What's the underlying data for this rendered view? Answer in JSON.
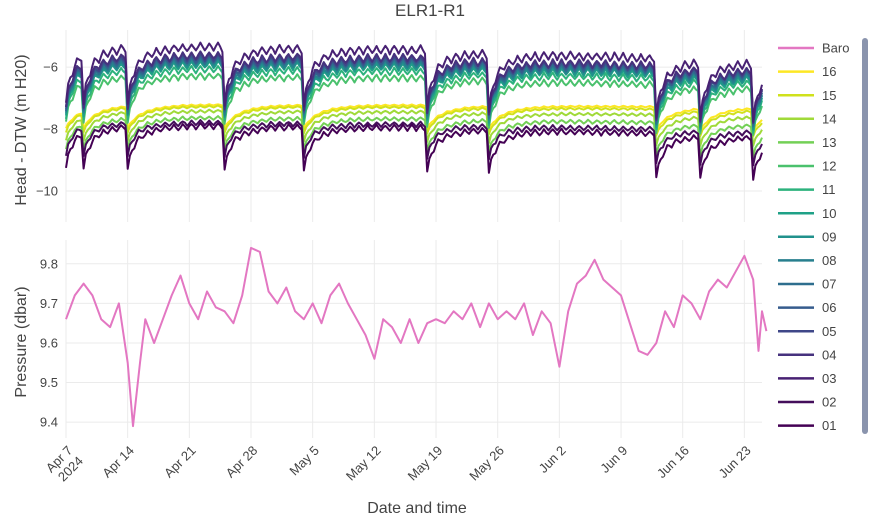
{
  "chart_data": {
    "type": "line",
    "title": "ELR1-R1",
    "xlabel": "Date and time",
    "x_tick_labels": [
      "Apr 7\n2024",
      "Apr 14",
      "Apr 21",
      "Apr 28",
      "May 5",
      "May 12",
      "May 19",
      "May 26",
      "Jun 2",
      "Jun 9",
      "Jun 16",
      "Jun 23"
    ],
    "x_tick_dates": [
      "2024-04-07",
      "2024-04-14",
      "2024-04-21",
      "2024-04-28",
      "2024-05-05",
      "2024-05-12",
      "2024-05-19",
      "2024-05-26",
      "2024-06-02",
      "2024-06-09",
      "2024-06-16",
      "2024-06-23"
    ],
    "xlim": [
      "2024-04-07",
      "2024-06-25"
    ],
    "grid": true,
    "legend_placement": "right",
    "panels": [
      {
        "ylabel": "Head - DTW (m H20)",
        "ylim": [
          -11,
          -4.8
        ],
        "y_ticks": [
          -10,
          -8,
          -6
        ],
        "y_tick_labels": [
          "−10",
          "−8",
          "−6"
        ]
      },
      {
        "ylabel": "Pressure (dbar)",
        "ylim": [
          9.36,
          9.86
        ],
        "y_ticks": [
          9.4,
          9.5,
          9.6,
          9.7,
          9.8
        ],
        "y_tick_labels": [
          "9.4",
          "9.5",
          "9.6",
          "9.7",
          "9.8"
        ]
      }
    ],
    "recharge_events": [
      "2024-04-07",
      "2024-04-09",
      "2024-04-14",
      "2024-04-25",
      "2024-05-04",
      "2024-05-18",
      "2024-05-25",
      "2024-06-13",
      "2024-06-18",
      "2024-06-24"
    ],
    "series": [
      {
        "name": "Baro",
        "color": "#e377c2",
        "panel": 2,
        "points": [
          [
            "2024-04-07",
            9.66
          ],
          [
            "2024-04-08",
            9.72
          ],
          [
            "2024-04-09",
            9.75
          ],
          [
            "2024-04-10",
            9.72
          ],
          [
            "2024-04-11",
            9.66
          ],
          [
            "2024-04-12",
            9.64
          ],
          [
            "2024-04-13",
            9.7
          ],
          [
            "2024-04-14",
            9.55
          ],
          [
            "2024-04-14.6",
            9.39
          ],
          [
            "2024-04-15.4",
            9.55
          ],
          [
            "2024-04-16",
            9.66
          ],
          [
            "2024-04-17",
            9.6
          ],
          [
            "2024-04-18",
            9.66
          ],
          [
            "2024-04-19",
            9.72
          ],
          [
            "2024-04-20",
            9.77
          ],
          [
            "2024-04-21",
            9.7
          ],
          [
            "2024-04-22",
            9.66
          ],
          [
            "2024-04-23",
            9.73
          ],
          [
            "2024-04-24",
            9.69
          ],
          [
            "2024-04-25",
            9.68
          ],
          [
            "2024-04-26",
            9.65
          ],
          [
            "2024-04-27",
            9.72
          ],
          [
            "2024-04-28",
            9.84
          ],
          [
            "2024-04-29",
            9.83
          ],
          [
            "2024-04-30",
            9.73
          ],
          [
            "2024-05-01",
            9.7
          ],
          [
            "2024-05-02",
            9.74
          ],
          [
            "2024-05-03",
            9.68
          ],
          [
            "2024-05-04",
            9.66
          ],
          [
            "2024-05-05",
            9.7
          ],
          [
            "2024-05-06",
            9.65
          ],
          [
            "2024-05-07",
            9.72
          ],
          [
            "2024-05-08",
            9.75
          ],
          [
            "2024-05-09",
            9.7
          ],
          [
            "2024-05-10",
            9.66
          ],
          [
            "2024-05-11",
            9.62
          ],
          [
            "2024-05-12",
            9.56
          ],
          [
            "2024-05-13",
            9.66
          ],
          [
            "2024-05-14",
            9.64
          ],
          [
            "2024-05-15",
            9.6
          ],
          [
            "2024-05-16",
            9.66
          ],
          [
            "2024-05-17",
            9.6
          ],
          [
            "2024-05-18",
            9.65
          ],
          [
            "2024-05-19",
            9.66
          ],
          [
            "2024-05-20",
            9.65
          ],
          [
            "2024-05-21",
            9.68
          ],
          [
            "2024-05-22",
            9.66
          ],
          [
            "2024-05-23",
            9.7
          ],
          [
            "2024-05-24",
            9.64
          ],
          [
            "2024-05-25",
            9.7
          ],
          [
            "2024-05-26",
            9.66
          ],
          [
            "2024-05-27",
            9.68
          ],
          [
            "2024-05-28",
            9.66
          ],
          [
            "2024-05-29",
            9.7
          ],
          [
            "2024-05-30",
            9.62
          ],
          [
            "2024-05-31",
            9.68
          ],
          [
            "2024-06-01",
            9.65
          ],
          [
            "2024-06-02",
            9.54
          ],
          [
            "2024-06-03",
            9.68
          ],
          [
            "2024-06-04",
            9.75
          ],
          [
            "2024-06-05",
            9.77
          ],
          [
            "2024-06-06",
            9.81
          ],
          [
            "2024-06-07",
            9.76
          ],
          [
            "2024-06-08",
            9.74
          ],
          [
            "2024-06-09",
            9.72
          ],
          [
            "2024-06-10",
            9.65
          ],
          [
            "2024-06-11",
            9.58
          ],
          [
            "2024-06-12",
            9.57
          ],
          [
            "2024-06-13",
            9.6
          ],
          [
            "2024-06-14",
            9.68
          ],
          [
            "2024-06-15",
            9.64
          ],
          [
            "2024-06-16",
            9.72
          ],
          [
            "2024-06-17",
            9.7
          ],
          [
            "2024-06-18",
            9.66
          ],
          [
            "2024-06-19",
            9.73
          ],
          [
            "2024-06-20",
            9.76
          ],
          [
            "2024-06-21",
            9.74
          ],
          [
            "2024-06-22",
            9.78
          ],
          [
            "2024-06-23",
            9.82
          ],
          [
            "2024-06-24",
            9.76
          ],
          [
            "2024-06-24.6",
            9.58
          ],
          [
            "2024-06-25",
            9.68
          ],
          [
            "2024-06-25.5",
            9.63
          ]
        ]
      },
      {
        "name": "16",
        "color": "#fde725",
        "panel": 1,
        "base": -7.5,
        "drop": 0.18,
        "amp": 0.6
      },
      {
        "name": "15",
        "color": "#d0e11c",
        "panel": 1,
        "base": -7.55,
        "drop": 0.25,
        "amp": 0.6
      },
      {
        "name": "14",
        "color": "#a0da39",
        "panel": 1,
        "base": -7.7,
        "drop": 0.35,
        "amp": 0.62
      },
      {
        "name": "13",
        "color": "#73d056",
        "panel": 1,
        "base": -7.9,
        "drop": 0.45,
        "amp": 0.6
      },
      {
        "name": "12",
        "color": "#4ac16d",
        "panel": 1,
        "base": -6.6,
        "drop": 0.8,
        "amp": 0.75
      },
      {
        "name": "11",
        "color": "#2db27d",
        "panel": 1,
        "base": -6.4,
        "drop": 0.85,
        "amp": 0.8
      },
      {
        "name": "10",
        "color": "#1fa187",
        "panel": 1,
        "base": -6.25,
        "drop": 0.9,
        "amp": 0.8
      },
      {
        "name": "09",
        "color": "#21918c",
        "panel": 1,
        "base": -6.2,
        "drop": 0.9,
        "amp": 0.8
      },
      {
        "name": "08",
        "color": "#277f8e",
        "panel": 1,
        "base": -6.15,
        "drop": 0.9,
        "amp": 0.8
      },
      {
        "name": "07",
        "color": "#2e6e8e",
        "panel": 1,
        "base": -6.1,
        "drop": 0.9,
        "amp": 0.8
      },
      {
        "name": "06",
        "color": "#365c8d",
        "panel": 1,
        "base": -6.05,
        "drop": 0.9,
        "amp": 0.8
      },
      {
        "name": "05",
        "color": "#3f4788",
        "panel": 1,
        "base": -6.0,
        "drop": 0.9,
        "amp": 0.8
      },
      {
        "name": "04",
        "color": "#46327e",
        "panel": 1,
        "base": -5.95,
        "drop": 0.95,
        "amp": 0.8
      },
      {
        "name": "03",
        "color": "#482173",
        "panel": 1,
        "base": -5.7,
        "drop": 1.05,
        "amp": 0.85
      },
      {
        "name": "02",
        "color": "#440e5b",
        "panel": 1,
        "base": -8.0,
        "drop": 0.6,
        "amp": 0.5
      },
      {
        "name": "01",
        "color": "#440154",
        "panel": 1,
        "base": -8.2,
        "drop": 0.7,
        "amp": 0.7
      }
    ]
  }
}
